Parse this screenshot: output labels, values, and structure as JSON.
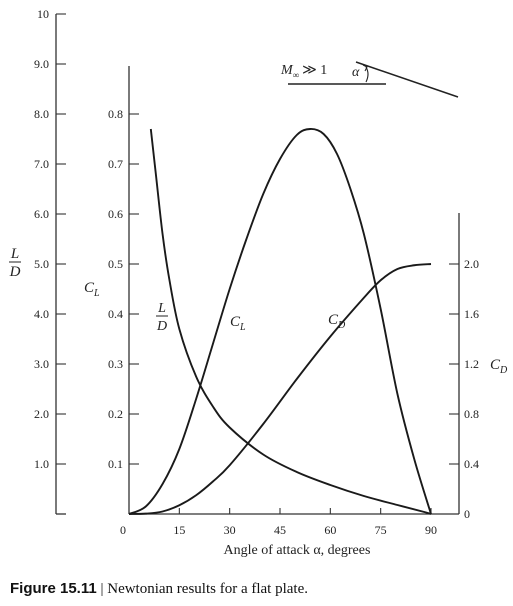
{
  "chart_data": {
    "type": "line",
    "xlabel": "Angle of attack α, degrees",
    "x_ticks": [
      "0",
      "15",
      "30",
      "45",
      "60",
      "75",
      "90"
    ],
    "xlim": [
      0,
      90
    ],
    "axes": {
      "ld": {
        "label_num": "L",
        "label_den": "D",
        "ylim": [
          0,
          10
        ],
        "ticks": [
          "1.0",
          "2.0",
          "3.0",
          "4.0",
          "5.0",
          "6.0",
          "7.0",
          "8.0",
          "9.0",
          "10"
        ],
        "tick_values": [
          1,
          2,
          3,
          4,
          5,
          6,
          7,
          8,
          9,
          10
        ]
      },
      "cl": {
        "label_main": "C",
        "label_sub": "L",
        "ylim": [
          0,
          0.8
        ],
        "ticks": [
          "0.1",
          "0.2",
          "0.3",
          "0.4",
          "0.5",
          "0.6",
          "0.7",
          "0.8"
        ],
        "tick_values": [
          0.1,
          0.2,
          0.3,
          0.4,
          0.5,
          0.6,
          0.7,
          0.8
        ]
      },
      "cd": {
        "label_main": "C",
        "label_sub": "D",
        "ylim": [
          0,
          2.0
        ],
        "ticks": [
          "0",
          "0.4",
          "0.8",
          "1.2",
          "1.6",
          "2.0"
        ],
        "tick_values": [
          0,
          0.4,
          0.8,
          1.2,
          1.6,
          2.0
        ]
      }
    },
    "series": [
      {
        "key": "ld",
        "axis": "ld",
        "name_num": "L",
        "name_den": "D",
        "x": [
          6.5,
          8,
          10,
          12,
          15,
          20,
          25,
          30,
          40,
          50,
          60,
          70,
          80,
          88,
          90
        ],
        "y": [
          7.7,
          6.8,
          5.6,
          4.7,
          3.7,
          2.75,
          2.15,
          1.73,
          1.19,
          0.84,
          0.58,
          0.36,
          0.18,
          0.04,
          0.0
        ]
      },
      {
        "key": "cl",
        "axis": "cl",
        "name_main": "C",
        "name_sub": "L",
        "x": [
          0,
          5,
          10,
          15,
          20,
          25,
          30,
          35,
          40,
          45,
          50,
          54,
          58,
          62,
          66,
          70,
          75,
          80,
          85,
          90
        ],
        "y": [
          0.0,
          0.015,
          0.06,
          0.13,
          0.23,
          0.34,
          0.45,
          0.55,
          0.64,
          0.71,
          0.758,
          0.77,
          0.76,
          0.72,
          0.65,
          0.56,
          0.41,
          0.24,
          0.11,
          0.0
        ]
      },
      {
        "key": "cd",
        "axis": "cd",
        "name_main": "C",
        "name_sub": "D",
        "x": [
          0,
          5,
          10,
          15,
          20,
          25,
          30,
          40,
          50,
          60,
          70,
          75,
          80,
          85,
          90
        ],
        "y": [
          0.0,
          0.003,
          0.02,
          0.07,
          0.15,
          0.26,
          0.39,
          0.72,
          1.08,
          1.42,
          1.73,
          1.87,
          1.96,
          1.99,
          2.0
        ]
      }
    ],
    "inset": {
      "mach": "M",
      "mach_sub": "∞",
      "relation": "≫ 1",
      "angle": "α"
    }
  },
  "caption": {
    "label": "Figure 15.11",
    "separator": "|",
    "text": "Newtonian results for a flat plate."
  }
}
